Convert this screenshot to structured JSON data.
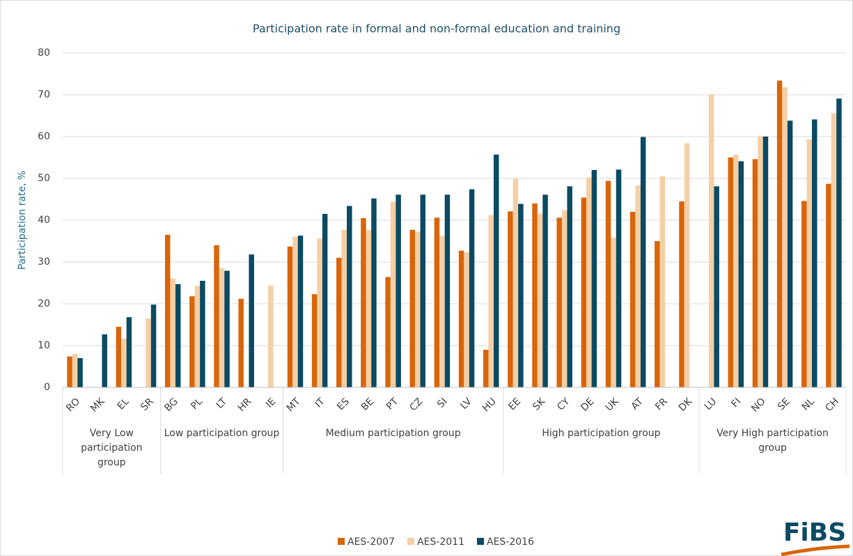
{
  "chart_data": {
    "type": "bar",
    "title": "Participation rate in formal and non-formal education and training",
    "y_label": "Participation rate, %",
    "categories": [
      "RO",
      "MK",
      "EL",
      "SR",
      "BG",
      "PL",
      "LT",
      "HR",
      "IE",
      "MT",
      "IT",
      "ES",
      "BE",
      "PT",
      "CZ",
      "SI",
      "LV",
      "HU",
      "EE",
      "SK",
      "CY",
      "DE",
      "UK",
      "AT",
      "FR",
      "DK",
      "LU",
      "FI",
      "NO",
      "SE",
      "NL",
      "CH"
    ],
    "groups": [
      "Very Low participation group",
      "Low participation group",
      "Medium participation group",
      "High participation group",
      "Very High participation group"
    ],
    "series": [
      {
        "name": "AES-2007",
        "color": "#d9650a",
        "values": [
          7.4,
          null,
          14.5,
          null,
          36.5,
          21.8,
          34,
          21.2,
          null,
          33.7,
          22.3,
          31,
          40.5,
          26.4,
          37.7,
          40.6,
          32.7,
          9,
          42.1,
          44,
          40.6,
          45.4,
          49.4,
          42,
          35,
          44.5,
          null,
          55,
          54.6,
          73.4,
          44.6,
          48.7
        ]
      },
      {
        "name": "AES-2011",
        "color": "#f5cfa5",
        "values": [
          8,
          null,
          11.7,
          16.5,
          26,
          24.3,
          28.5,
          null,
          24.4,
          36,
          35.6,
          37.7,
          37.6,
          44.4,
          37.2,
          36.2,
          32.3,
          41.2,
          50,
          41.6,
          42.4,
          50.2,
          35.8,
          48.3,
          50.5,
          58.4,
          70.1,
          55.7,
          60.1,
          71.8,
          59.3,
          65.6
        ]
      },
      {
        "name": "AES-2016",
        "color": "#0b4a63",
        "values": [
          7,
          12.7,
          16.8,
          19.8,
          24.7,
          25.5,
          27.9,
          31.8,
          null,
          36.3,
          41.5,
          43.4,
          45.2,
          46.1,
          46.1,
          46.1,
          47.4,
          55.7,
          43.9,
          46.1,
          48.1,
          52,
          52.1,
          59.9,
          null,
          null,
          48.1,
          54.1,
          60,
          63.8,
          64.1,
          69.1
        ]
      }
    ],
    "ylim": [
      0,
      80
    ],
    "yticks": [
      0,
      10,
      20,
      30,
      40,
      50,
      60,
      70,
      80
    ],
    "grid": true,
    "legend": "bottom"
  },
  "logo": "FiBS"
}
